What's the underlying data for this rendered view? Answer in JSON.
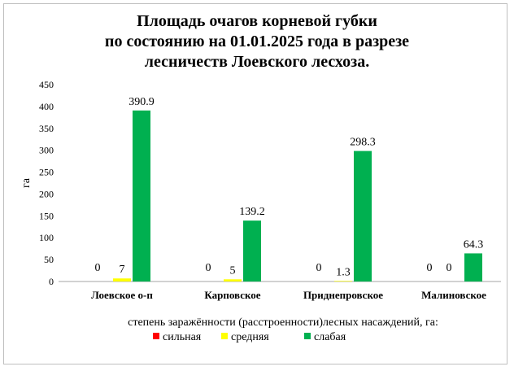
{
  "chart_data": {
    "type": "bar",
    "title_lines": [
      "Площадь очагов корневой губки",
      "по состоянию на 01.01.2025 года в разрезе",
      "лесничеств Лоевского лесхоза."
    ],
    "ylabel": "га",
    "xlabel": "степень заражённости (расстроенности)лесных насаждений, га:",
    "ylim": [
      0,
      450
    ],
    "yticks": [
      0,
      50,
      100,
      150,
      200,
      250,
      300,
      350,
      400,
      450
    ],
    "categories": [
      "Лоевское о-п",
      "Карповское",
      "Приднепровское",
      "Малиновское"
    ],
    "series": [
      {
        "name": "сильная",
        "color": "#ff0000",
        "values": [
          0,
          0,
          0,
          0
        ],
        "labels": [
          "0",
          "0",
          "0",
          "0"
        ]
      },
      {
        "name": "средняя",
        "color": "#ffff00",
        "values": [
          7,
          5,
          1.3,
          0
        ],
        "labels": [
          "7",
          "5",
          "1.3",
          "0"
        ]
      },
      {
        "name": "слабая",
        "color": "#00b050",
        "values": [
          390.9,
          139.2,
          298.3,
          64.3
        ],
        "labels": [
          "390.9",
          "139.2",
          "298.3",
          "64.3"
        ]
      }
    ],
    "grid": false,
    "legend_position": "bottom"
  }
}
